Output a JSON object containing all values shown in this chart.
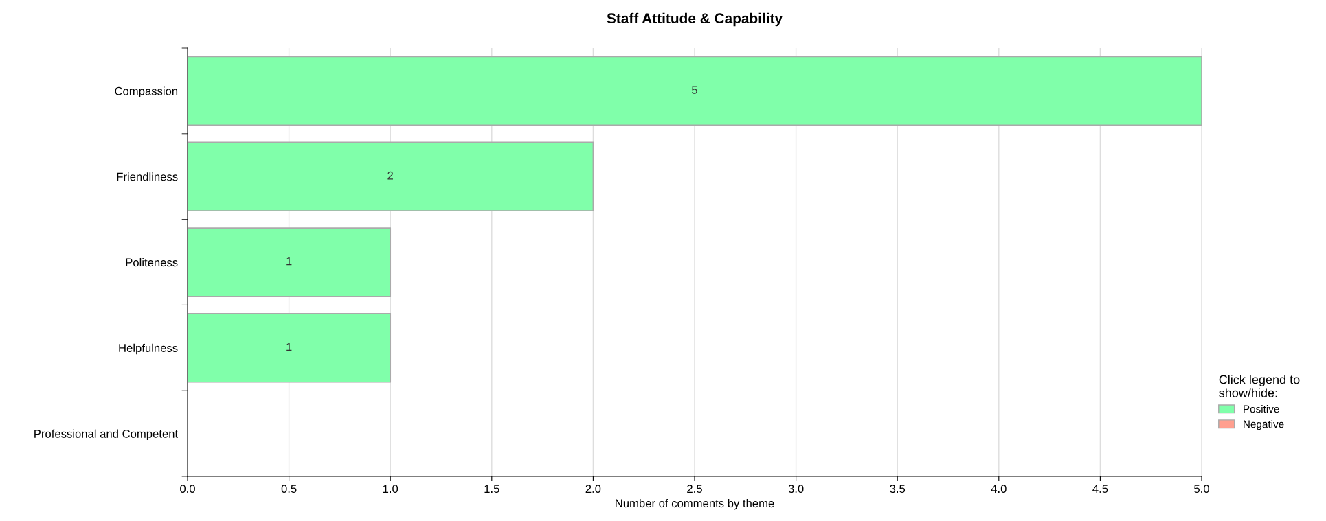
{
  "chart_data": {
    "type": "bar",
    "orientation": "horizontal",
    "title": "Staff Attitude & Capability",
    "xlabel": "Number of comments by theme",
    "categories": [
      "Compassion",
      "Friendliness",
      "Politeness",
      "Helpfulness",
      "Professional and Competent"
    ],
    "series": [
      {
        "name": "Positive",
        "color": "#80ffaa",
        "values": [
          5,
          2,
          1,
          1,
          null
        ],
        "value_labels": [
          "5",
          "2",
          "1",
          "1",
          null
        ]
      },
      {
        "name": "Negative",
        "color": "#ff9f8f",
        "values": [
          null,
          null,
          null,
          null,
          null
        ]
      }
    ],
    "xlim": [
      0,
      5
    ],
    "xticks": [
      {
        "value": 0,
        "label": "0.0"
      },
      {
        "value": 0.5,
        "label": "0.5"
      },
      {
        "value": 1,
        "label": "1.0"
      },
      {
        "value": 1.5,
        "label": "1.5"
      },
      {
        "value": 2,
        "label": "2.0"
      },
      {
        "value": 2.5,
        "label": "2.5"
      },
      {
        "value": 3,
        "label": "3.0"
      },
      {
        "value": 3.5,
        "label": "3.5"
      },
      {
        "value": 4,
        "label": "4.0"
      },
      {
        "value": 4.5,
        "label": "4.5"
      },
      {
        "value": 5,
        "label": "5.0"
      }
    ],
    "grid": "x",
    "legend": "bottom right",
    "legend_title": "Click legend to\nshow/hide:"
  }
}
